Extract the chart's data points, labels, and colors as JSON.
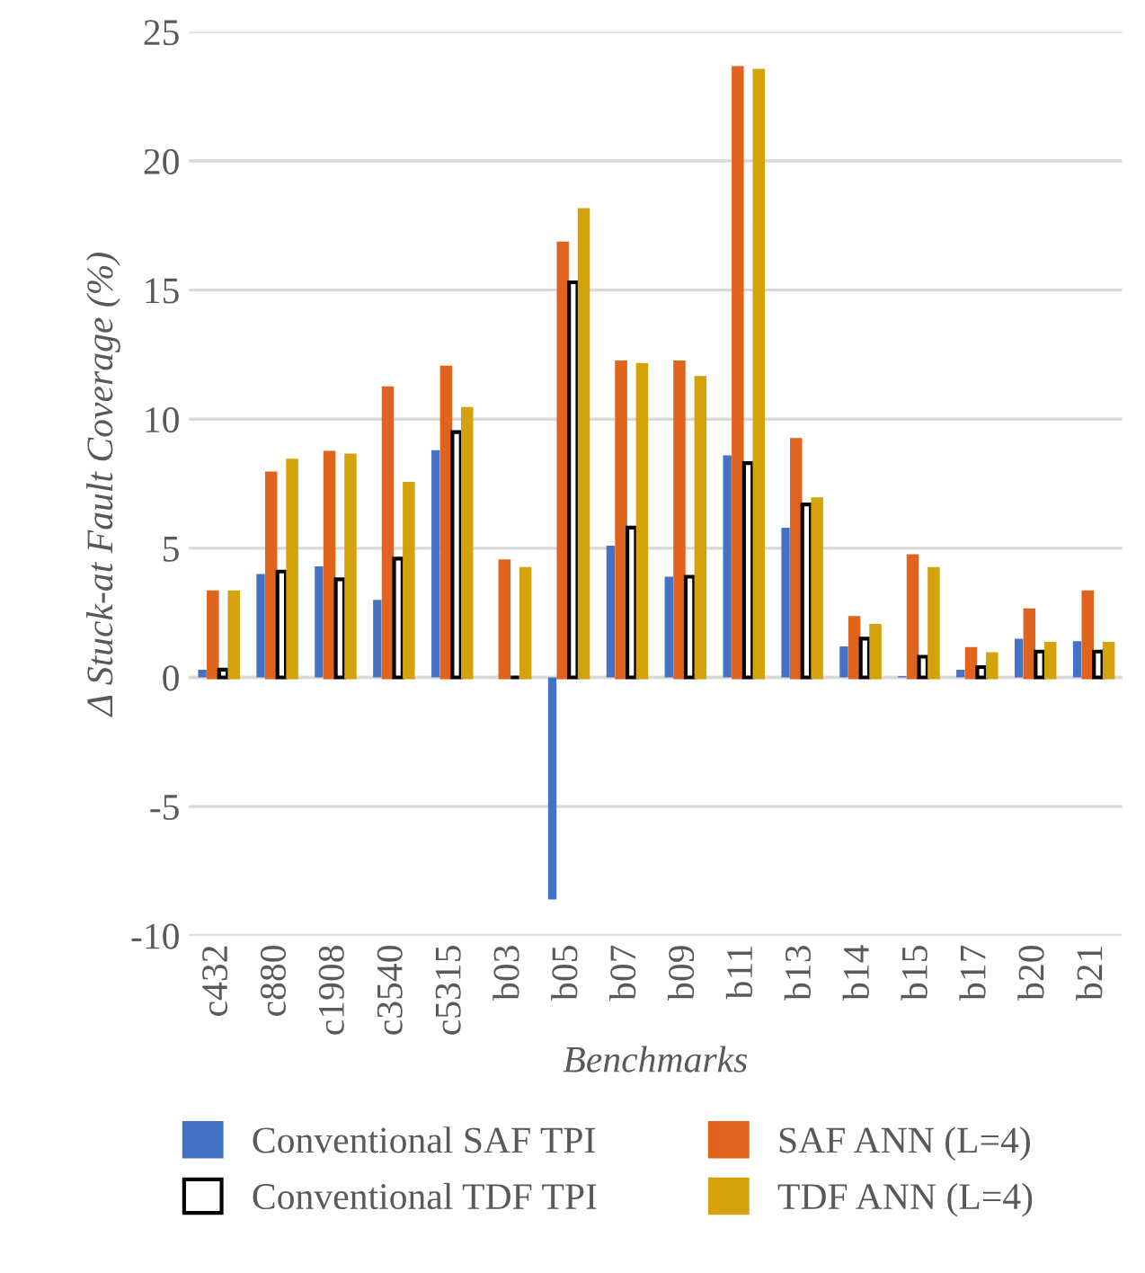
{
  "chart_data": {
    "type": "bar",
    "xlabel": "Benchmarks",
    "ylabel": "Δ Stuck-at Fault Coverage (%)",
    "categories": [
      "c432",
      "c880",
      "c1908",
      "c3540",
      "c5315",
      "b03",
      "b05",
      "b07",
      "b09",
      "b11",
      "b13",
      "b14",
      "b15",
      "b17",
      "b20",
      "b21"
    ],
    "series": [
      {
        "name": "Conventional SAF TPI",
        "color": "#4472c4",
        "values": [
          0.3,
          4.0,
          4.3,
          3.0,
          8.8,
          0,
          -8.6,
          5.1,
          3.9,
          8.6,
          5.8,
          1.2,
          0.05,
          0.3,
          1.5,
          1.4
        ]
      },
      {
        "name": "SAF ANN (L=4)",
        "color": "#e0641e",
        "values": [
          3.3,
          7.9,
          8.7,
          11.2,
          12.0,
          4.5,
          16.8,
          12.2,
          12.2,
          23.6,
          9.2,
          2.3,
          4.7,
          1.1,
          2.6,
          3.3
        ]
      },
      {
        "name": "Conventional TDF TPI",
        "color": "#000000",
        "values": [
          0.3,
          4.1,
          3.8,
          4.6,
          9.5,
          0,
          15.3,
          5.8,
          3.9,
          8.3,
          6.7,
          1.5,
          0.8,
          0.4,
          1.0,
          1.0
        ]
      },
      {
        "name": "TDF ANN (L=4)",
        "color": "#d4a20a",
        "values": [
          3.3,
          8.4,
          8.6,
          7.5,
          10.4,
          4.2,
          18.1,
          12.1,
          11.6,
          23.5,
          6.9,
          2.0,
          4.2,
          0.9,
          1.3,
          1.3
        ]
      }
    ],
    "ylim": [
      -10,
      25
    ],
    "yticks": [
      -10,
      -5,
      0,
      5,
      10,
      15,
      20,
      25
    ],
    "grid": "y",
    "legend": "bottom"
  }
}
